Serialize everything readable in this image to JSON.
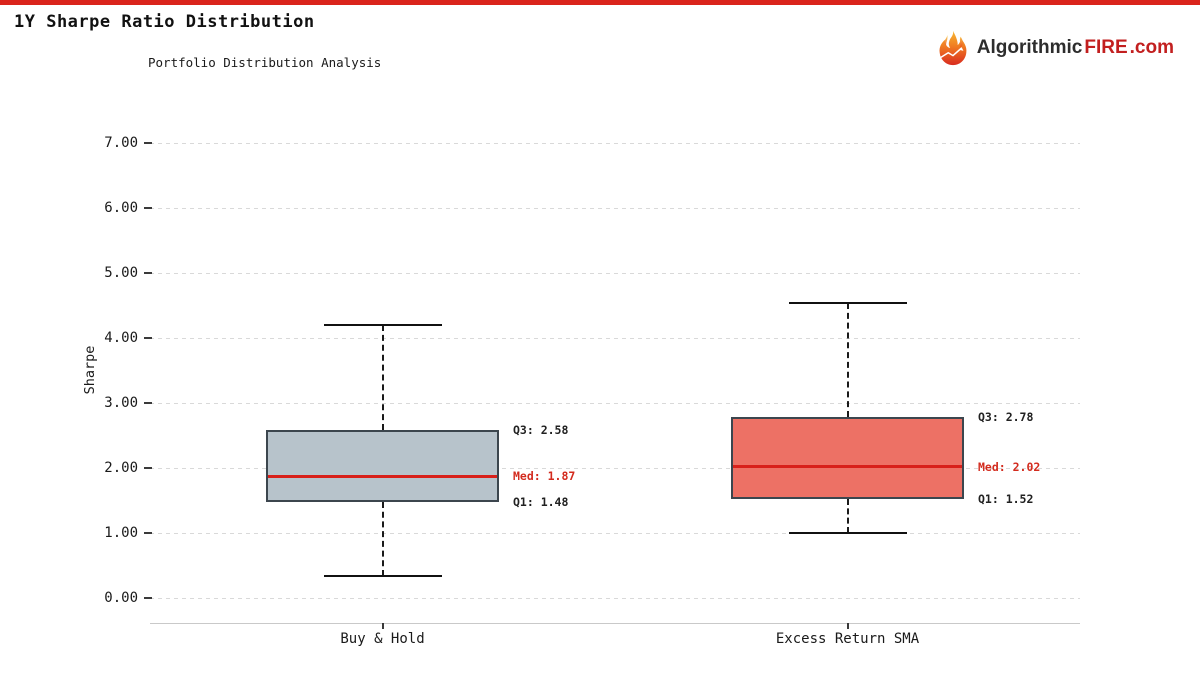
{
  "page": {
    "top_bar_color": "#da241c"
  },
  "header": {
    "title": "1Y Sharpe Ratio Distribution",
    "subtitle": "Portfolio Distribution Analysis",
    "logo": {
      "icon": "flame-icon",
      "brand_prefix": "Algorithmic",
      "brand_highlight": "FIRE",
      "brand_suffix": ".com",
      "prefix_color": "#2d2d2d",
      "highlight_color": "#c21f1f"
    }
  },
  "chart_data": {
    "type": "boxplot",
    "title": "1Y Sharpe Ratio Distribution",
    "subtitle": "Portfolio Distribution Analysis",
    "xlabel": "",
    "ylabel": "Sharpe",
    "ylim": [
      0,
      7
    ],
    "ytick_interval": 1,
    "ytick_labels": [
      "0.00",
      "1.00",
      "2.00",
      "3.00",
      "4.00",
      "5.00",
      "6.00",
      "7.00"
    ],
    "grid": "horizontal dashed",
    "legend": "none",
    "categories": [
      "Buy & Hold",
      "Excess Return SMA"
    ],
    "series": [
      {
        "name": "Buy & Hold",
        "whisker_low": 0.34,
        "q1": 1.48,
        "median": 1.87,
        "q3": 2.58,
        "whisker_high": 4.2,
        "box_color": "#b7c3cb",
        "annotations": {
          "q3": "Q3: 2.58",
          "med": "Med: 1.87",
          "q1": "Q1: 1.48"
        }
      },
      {
        "name": "Excess Return SMA",
        "whisker_low": 1.0,
        "q1": 1.52,
        "median": 2.02,
        "q3": 2.78,
        "whisker_high": 4.54,
        "box_color": "#ed7165",
        "annotations": {
          "q3": "Q3: 2.78",
          "med": "Med: 2.02",
          "q1": "Q1: 1.52"
        }
      }
    ],
    "median_color": "#d8201a",
    "annotation_colors": {
      "quartile": "#212121",
      "median": "#d32b1e"
    }
  }
}
